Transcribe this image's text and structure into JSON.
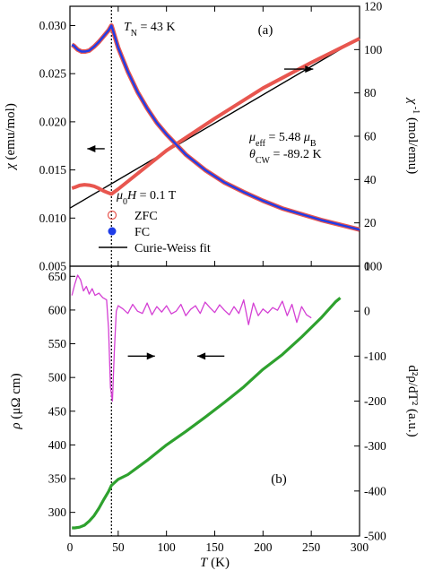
{
  "chart_data": [
    {
      "panel": "a",
      "type": "line",
      "panel_label": "(a)",
      "annotation_TN": {
        "symbol": "T",
        "sub": "N",
        "value": " = 43 K"
      },
      "annotation_mueff": {
        "symbol": "μ",
        "sub": "eff",
        "value": " = 5.48 ",
        "unit": "μ",
        "unit_sub": "B"
      },
      "annotation_theta": {
        "symbol": "θ",
        "sub": "CW",
        "value": " = -89.2 K"
      },
      "annotation_field": {
        "symbol": "μ",
        "sub": "0",
        "var": "H",
        "value": " = 0.1 T"
      },
      "left_axis": {
        "label_symbol": "χ",
        "label_unit": " (emu/mol)",
        "ylim": [
          0.005,
          0.032
        ],
        "ticks": [
          "0.005",
          "0.010",
          "0.015",
          "0.020",
          "0.025",
          "0.030"
        ],
        "tick_values": [
          0.005,
          0.01,
          0.015,
          0.02,
          0.025,
          0.03
        ]
      },
      "right_axis": {
        "label_symbol": "χ",
        "label_sup": " -1",
        "label_unit": " (mol/emu)",
        "ylim": [
          0,
          120
        ],
        "ticks": [
          "0",
          "20",
          "40",
          "60",
          "80",
          "100",
          "120"
        ],
        "tick_values": [
          0,
          20,
          40,
          60,
          80,
          100,
          120
        ]
      },
      "xlim": [
        0,
        300
      ],
      "vline_x": 43,
      "legend": [
        {
          "label": "ZFC",
          "marker": "open-circle",
          "color": "#e8564f"
        },
        {
          "label": "FC",
          "marker": "filled-circle",
          "color": "#1f3de8"
        },
        {
          "label": "Curie-Weiss fit",
          "marker": "line",
          "color": "#000000"
        }
      ],
      "series": [
        {
          "name": "ZFC",
          "axis": "left",
          "color": "#e8564f",
          "x": [
            2,
            4,
            8,
            12,
            16,
            20,
            25,
            30,
            35,
            40,
            43,
            50,
            60,
            70,
            80,
            90,
            100,
            120,
            140,
            160,
            180,
            200,
            220,
            240,
            260,
            280,
            300
          ],
          "y": [
            0.028,
            0.0279,
            0.0275,
            0.0273,
            0.0273,
            0.0274,
            0.0278,
            0.0283,
            0.0289,
            0.0295,
            0.03,
            0.0277,
            0.0252,
            0.0231,
            0.0214,
            0.0199,
            0.0187,
            0.0166,
            0.015,
            0.0137,
            0.0127,
            0.0118,
            0.011,
            0.0104,
            0.0098,
            0.0093,
            0.0088
          ]
        },
        {
          "name": "FC",
          "axis": "left",
          "color": "#1f3de8",
          "x": [
            2,
            4,
            8,
            12,
            16,
            20,
            25,
            30,
            35,
            40,
            43,
            50,
            60,
            70,
            80,
            90,
            100,
            120,
            140,
            160,
            180,
            200,
            220,
            240,
            260,
            280,
            300
          ],
          "y": [
            0.028,
            0.0279,
            0.0275,
            0.0273,
            0.0273,
            0.0274,
            0.0278,
            0.0283,
            0.0289,
            0.0295,
            0.03,
            0.0277,
            0.0252,
            0.0231,
            0.0214,
            0.0199,
            0.0187,
            0.0166,
            0.015,
            0.0137,
            0.0127,
            0.0118,
            0.011,
            0.0104,
            0.0098,
            0.0093,
            0.0088
          ]
        },
        {
          "name": "inverse χ",
          "axis": "right",
          "color": "#e8564f",
          "x": [
            2,
            5,
            10,
            15,
            20,
            25,
            30,
            35,
            40,
            43,
            50,
            100,
            150,
            200,
            250,
            300
          ],
          "y": [
            36.0,
            36.4,
            37.3,
            37.6,
            37.4,
            36.9,
            35.9,
            34.7,
            33.8,
            33.3,
            35.6,
            53.4,
            68.2,
            82.2,
            94.0,
            105.1
          ]
        },
        {
          "name": "Curie-Weiss fit",
          "axis": "right",
          "color": "#000000",
          "x": [
            0,
            300
          ],
          "y": [
            26.8,
            105.3
          ]
        }
      ],
      "arrows": [
        {
          "x": [
            36,
            18
          ],
          "y": [
            0.0172,
            0.0172
          ],
          "axis": "left"
        },
        {
          "x": [
            222,
            252
          ],
          "y": [
            91,
            91
          ],
          "axis": "right"
        }
      ]
    },
    {
      "panel": "b",
      "type": "line",
      "panel_label": "(b)",
      "xlabel_symbol": "T",
      "xlabel_unit": " (K)",
      "xlim": [
        0,
        300
      ],
      "xticks": [
        "0",
        "50",
        "100",
        "150",
        "200",
        "250",
        "300"
      ],
      "xtick_values": [
        0,
        50,
        100,
        150,
        200,
        250,
        300
      ],
      "vline_x": 43,
      "left_axis": {
        "label_symbol": "ρ",
        "label_unit": " (μΩ cm)",
        "ylim": [
          265,
          665
        ],
        "ticks": [
          "300",
          "350",
          "400",
          "450",
          "500",
          "550",
          "600",
          "650"
        ],
        "tick_values": [
          300,
          350,
          400,
          450,
          500,
          550,
          600,
          650
        ]
      },
      "right_axis": {
        "label": "d²ρ/dT² (a.u.)",
        "ylim": [
          -500,
          100
        ],
        "ticks": [
          "-500",
          "-400",
          "-300",
          "-200",
          "-100",
          "0",
          "100"
        ],
        "tick_values": [
          -500,
          -400,
          -300,
          -200,
          -100,
          0,
          100
        ]
      },
      "series": [
        {
          "name": "ρ",
          "axis": "left",
          "color": "#2ea12e",
          "x": [
            2,
            5,
            10,
            15,
            20,
            25,
            30,
            35,
            40,
            43,
            50,
            60,
            80,
            100,
            120,
            140,
            160,
            180,
            200,
            220,
            240,
            260,
            270,
            275,
            280
          ],
          "y": [
            277,
            277,
            278,
            281,
            287,
            295,
            306,
            319,
            331,
            340,
            349,
            356,
            377,
            400,
            420,
            441,
            463,
            486,
            512,
            534,
            560,
            588,
            604,
            612,
            618
          ]
        },
        {
          "name": "d²ρ/dT²",
          "axis": "right",
          "color": "#d43fd4",
          "x": [
            2,
            5,
            8,
            11,
            14,
            17,
            20,
            23,
            26,
            30,
            34,
            38,
            40,
            42,
            44,
            46,
            48,
            50,
            55,
            60,
            65,
            70,
            75,
            80,
            85,
            90,
            95,
            100,
            105,
            110,
            115,
            120,
            125,
            130,
            135,
            140,
            145,
            150,
            155,
            160,
            165,
            170,
            175,
            180,
            185,
            190,
            195,
            200,
            205,
            210,
            215,
            220,
            225,
            230,
            235,
            240,
            245,
            250
          ],
          "y": [
            35,
            60,
            80,
            70,
            45,
            55,
            38,
            50,
            35,
            40,
            30,
            25,
            -40,
            -170,
            -200,
            -90,
            0,
            12,
            5,
            -5,
            15,
            0,
            -5,
            18,
            -8,
            10,
            -2,
            12,
            -6,
            0,
            15,
            -10,
            4,
            12,
            -5,
            20,
            8,
            -3,
            14,
            2,
            -8,
            10,
            -5,
            25,
            -30,
            18,
            -10,
            5,
            -4,
            8,
            2,
            22,
            -10,
            15,
            -25,
            10,
            -8,
            -15
          ]
        }
      ],
      "arrows": [
        {
          "x": [
            60,
            88
          ],
          "y": [
            -100,
            -100
          ],
          "axis": "right"
        },
        {
          "x": [
            160,
            132
          ],
          "y": [
            -100,
            -100
          ],
          "axis": "right"
        }
      ]
    }
  ]
}
